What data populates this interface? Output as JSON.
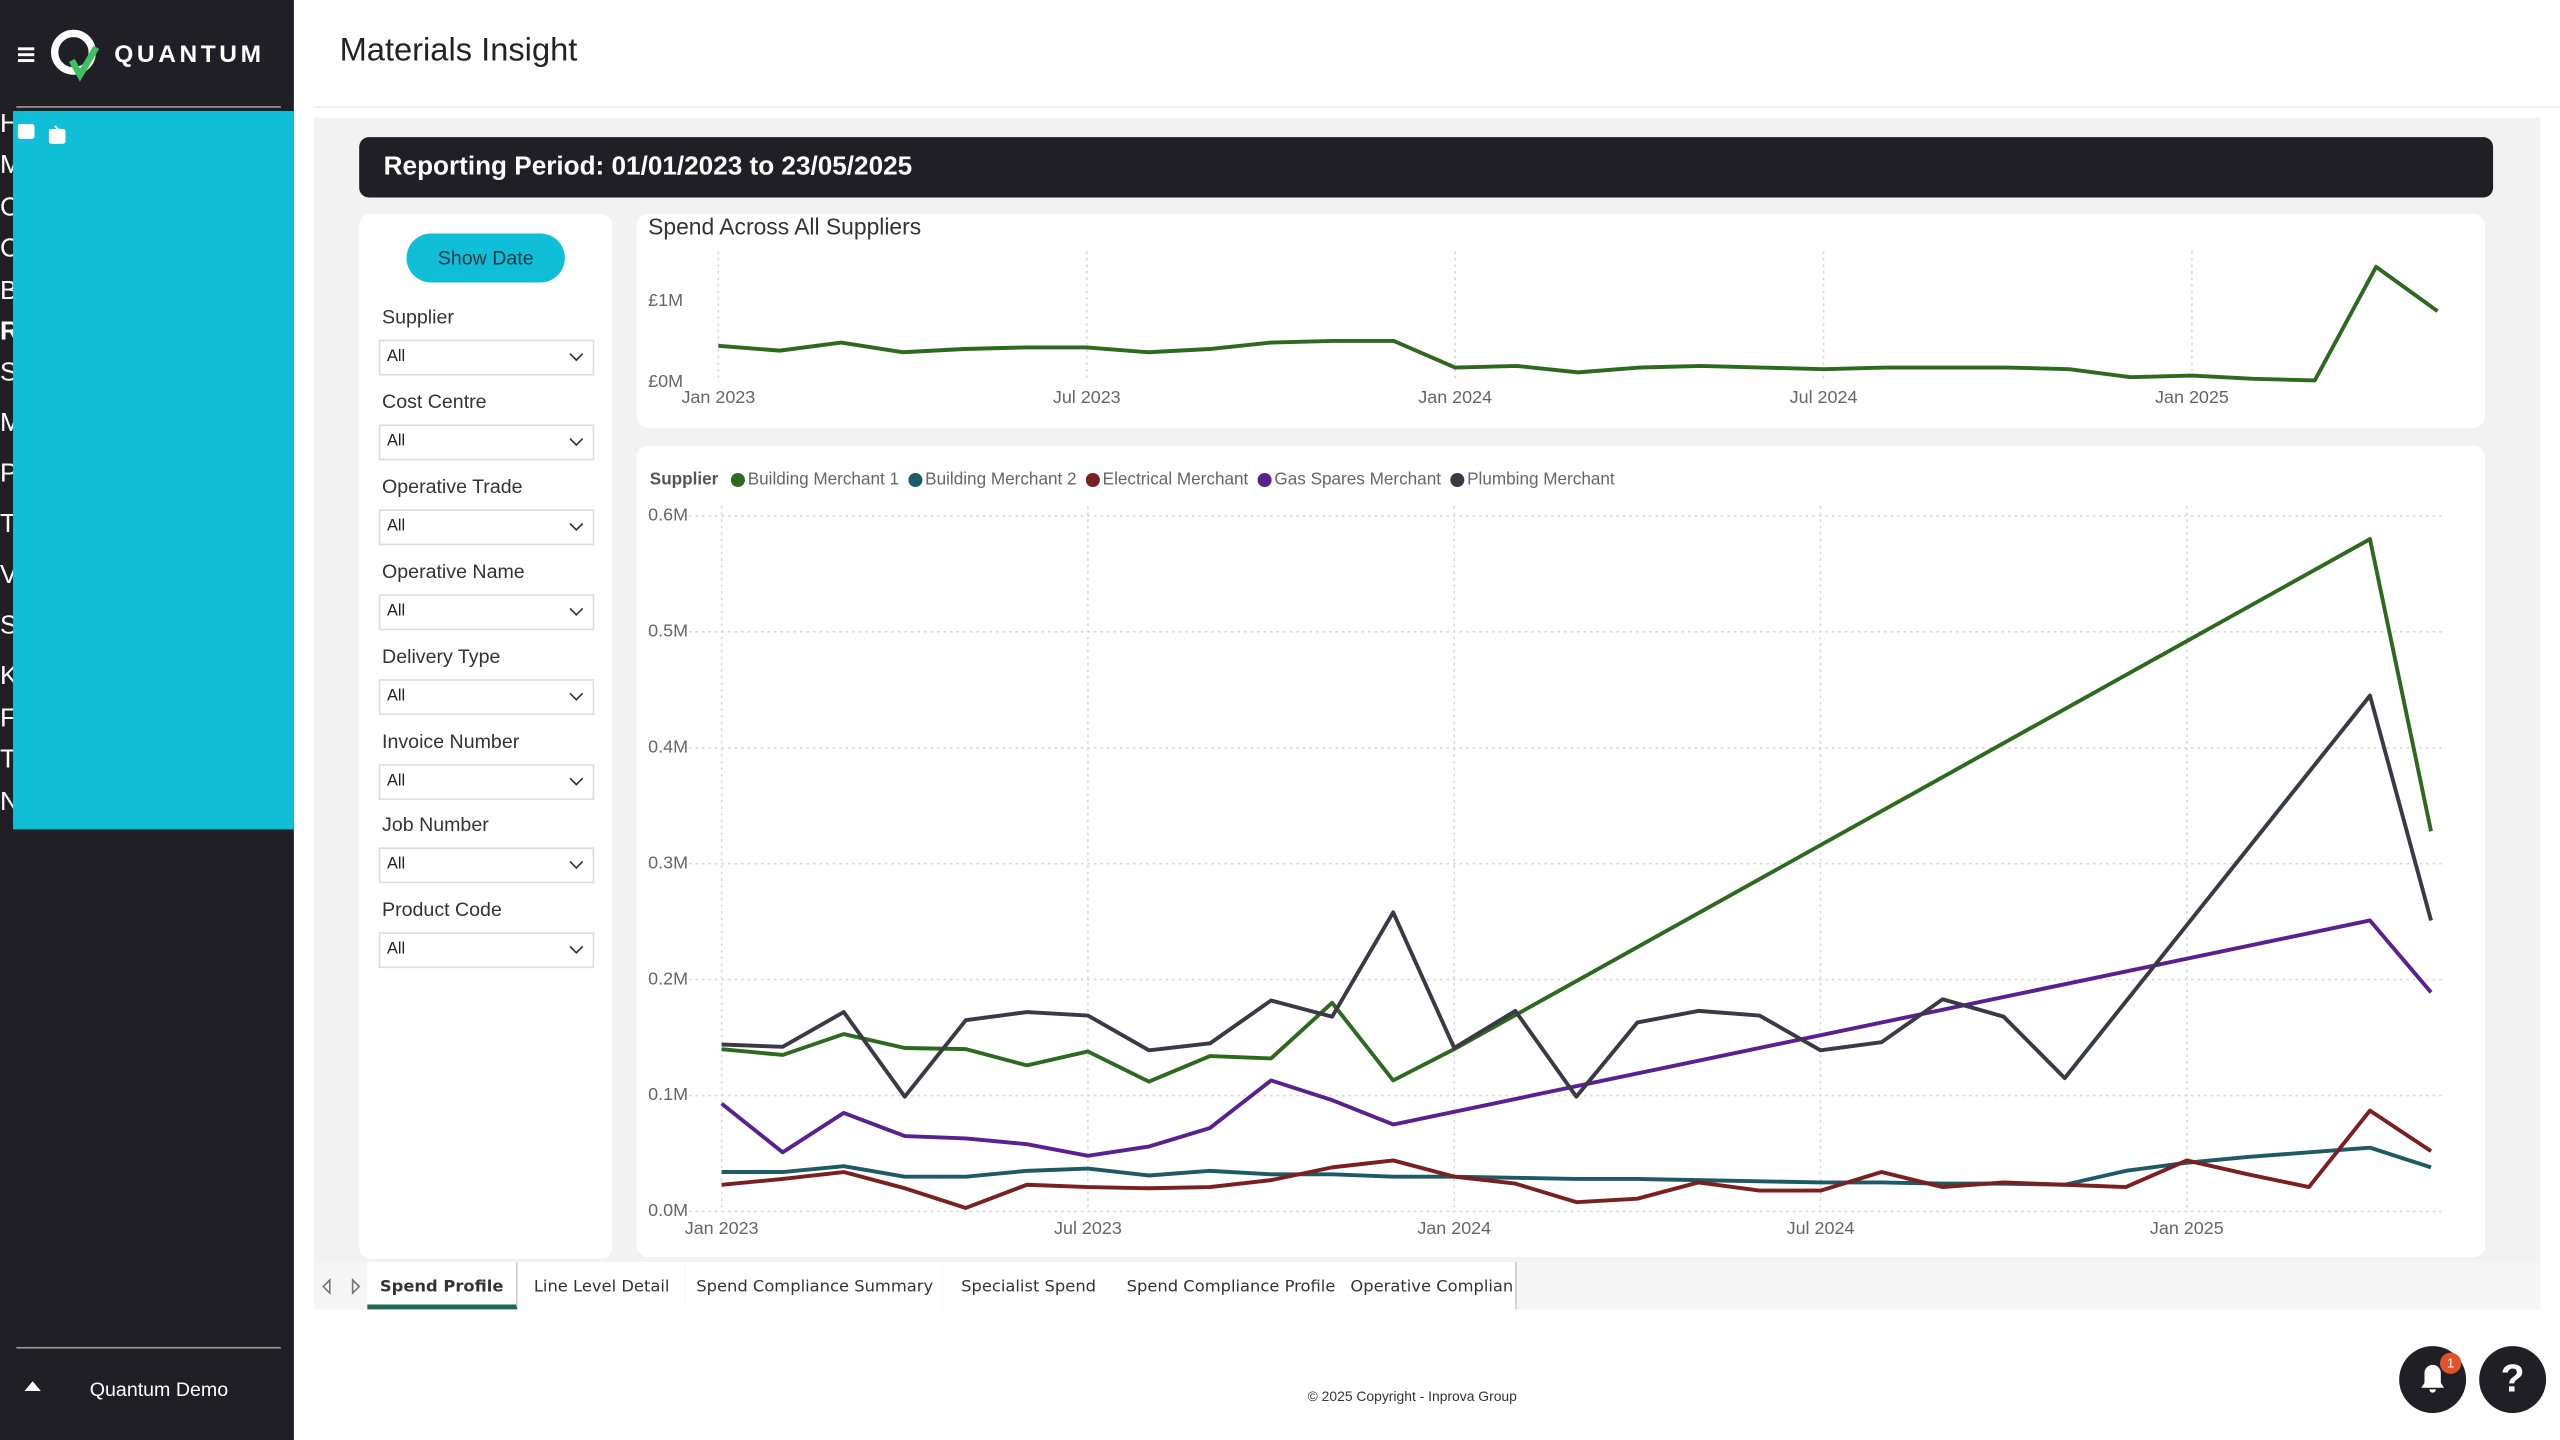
{
  "sidebar": {
    "brand": "QUANTUM",
    "nav": [
      {
        "label": "Home",
        "level": 0,
        "expandable": false
      },
      {
        "label": "Membership",
        "level": 0,
        "expandable": true
      },
      {
        "label": "Card Management",
        "level": 0,
        "expandable": true
      },
      {
        "label": "Contract Management",
        "level": 0,
        "expandable": true
      },
      {
        "label": "Basket",
        "level": 0,
        "expandable": true
      },
      {
        "label": "Reports & Data",
        "level": 0,
        "expandable": true,
        "open": true
      },
      {
        "label": "Spend Insight",
        "level": 1
      },
      {
        "label": "Materials Insight",
        "level": 1,
        "active": true
      },
      {
        "label": "Price Checking",
        "level": 1
      },
      {
        "label": "Transactions Download",
        "level": 1
      },
      {
        "label": "Value for Money",
        "level": 1
      },
      {
        "label": "Social Value",
        "level": 1
      },
      {
        "label": "Knowledge Hub",
        "level": 0,
        "expandable": true
      },
      {
        "label": "Finance & Billing",
        "level": 0,
        "expandable": true
      },
      {
        "label": "Tools & Resources",
        "level": 0,
        "expandable": true
      },
      {
        "label": "Notifications",
        "level": 0,
        "expandable": true
      }
    ],
    "user": "Quantum Demo"
  },
  "header": {
    "title": "Materials Insight"
  },
  "report": {
    "period": "Reporting Period: 01/01/2023 to 23/05/2025"
  },
  "filters": {
    "button": "Show Date",
    "items": [
      {
        "label": "Supplier",
        "value": "All"
      },
      {
        "label": "Cost Centre",
        "value": "All"
      },
      {
        "label": "Operative Trade",
        "value": "All"
      },
      {
        "label": "Operative Name",
        "value": "All"
      },
      {
        "label": "Delivery Type",
        "value": "All"
      },
      {
        "label": "Invoice Number",
        "value": "All"
      },
      {
        "label": "Job Number",
        "value": "All"
      },
      {
        "label": "Product Code",
        "value": "All"
      }
    ]
  },
  "chart_data": [
    {
      "type": "line",
      "title": "Spend Across All Suppliers",
      "color": "#2d6a1f",
      "grid": true,
      "x": [
        "2023-01",
        "2023-02",
        "2023-03",
        "2023-04",
        "2023-05",
        "2023-06",
        "2023-07",
        "2023-08",
        "2023-09",
        "2023-10",
        "2023-11",
        "2023-12",
        "2024-01",
        "2024-02",
        "2024-03",
        "2024-04",
        "2024-05",
        "2024-06",
        "2024-07",
        "2024-08",
        "2024-09",
        "2024-10",
        "2024-11",
        "2024-12",
        "2025-01",
        "2025-02",
        "2025-03",
        "2025-04",
        "2025-05"
      ],
      "values": [
        0.45,
        0.39,
        0.49,
        0.37,
        0.41,
        0.43,
        0.43,
        0.37,
        0.41,
        0.49,
        0.51,
        0.51,
        0.18,
        0.2,
        0.12,
        0.18,
        0.2,
        0.18,
        0.16,
        0.18,
        0.18,
        0.18,
        0.16,
        0.06,
        0.08,
        0.04,
        0.02,
        1.43,
        0.88
      ],
      "xlim": [
        "2023-01",
        "2025-05"
      ],
      "xticks": [
        {
          "value": "2023-01",
          "label": "Jan 2023"
        },
        {
          "value": "2023-07",
          "label": "Jul 2023"
        },
        {
          "value": "2024-01",
          "label": "Jan 2024"
        },
        {
          "value": "2024-07",
          "label": "Jul 2024"
        },
        {
          "value": "2025-01",
          "label": "Jan 2025"
        }
      ],
      "ylim": [
        0,
        1.5
      ],
      "yticks": [
        {
          "value": 0,
          "label": "£0M"
        },
        {
          "value": 1,
          "label": "£1M"
        }
      ]
    },
    {
      "type": "line",
      "legend_title": "Supplier",
      "grid": true,
      "series": [
        {
          "name": "Building Merchant 1",
          "color": "#2d6a1f",
          "x": [
            "2023-01",
            "2023-02",
            "2023-03",
            "2023-04",
            "2023-05",
            "2023-06",
            "2023-07",
            "2023-08",
            "2023-09",
            "2023-10",
            "2023-11",
            "2023-12",
            "2024-01",
            "2025-04",
            "2025-05"
          ],
          "values": [
            0.14,
            0.135,
            0.153,
            0.141,
            0.14,
            0.126,
            0.138,
            0.112,
            0.134,
            0.132,
            0.18,
            0.113,
            0.14,
            0.58,
            0.328
          ]
        },
        {
          "name": "Building Merchant 2",
          "color": "#1e5a66",
          "x": [
            "2023-01",
            "2023-02",
            "2023-03",
            "2023-04",
            "2023-05",
            "2023-06",
            "2023-07",
            "2023-08",
            "2023-09",
            "2023-10",
            "2023-11",
            "2023-12",
            "2024-01",
            "2024-02",
            "2024-03",
            "2024-04",
            "2024-05",
            "2024-06",
            "2024-07",
            "2024-08",
            "2024-09",
            "2024-10",
            "2024-11",
            "2024-12",
            "2025-01",
            "2025-02",
            "2025-03",
            "2025-04",
            "2025-05"
          ],
          "values": [
            0.034,
            0.034,
            0.039,
            0.03,
            0.03,
            0.035,
            0.037,
            0.031,
            0.035,
            0.032,
            0.032,
            0.03,
            0.03,
            0.029,
            0.028,
            0.028,
            0.027,
            0.026,
            0.025,
            0.025,
            0.024,
            0.024,
            0.023,
            0.035,
            0.042,
            0.047,
            0.051,
            0.055,
            0.038
          ]
        },
        {
          "name": "Electrical Merchant",
          "color": "#7b2020",
          "x": [
            "2023-01",
            "2023-02",
            "2023-03",
            "2023-04",
            "2023-05",
            "2023-06",
            "2023-07",
            "2023-08",
            "2023-09",
            "2023-10",
            "2023-11",
            "2023-12",
            "2024-01",
            "2024-02",
            "2024-03",
            "2024-04",
            "2024-05",
            "2024-06",
            "2024-07",
            "2024-08",
            "2024-09",
            "2024-10",
            "2024-11",
            "2024-12",
            "2025-01",
            "2025-02",
            "2025-03",
            "2025-04",
            "2025-05"
          ],
          "values": [
            0.023,
            0.028,
            0.034,
            0.02,
            0.003,
            0.023,
            0.021,
            0.02,
            0.021,
            0.027,
            0.038,
            0.044,
            0.03,
            0.024,
            0.008,
            0.011,
            0.025,
            0.018,
            0.018,
            0.034,
            0.021,
            0.025,
            0.023,
            0.021,
            0.044,
            0.032,
            0.021,
            0.087,
            0.052
          ]
        },
        {
          "name": "Gas Spares Merchant",
          "color": "#5a2090",
          "x": [
            "2023-01",
            "2023-02",
            "2023-03",
            "2023-04",
            "2023-05",
            "2023-06",
            "2023-07",
            "2023-08",
            "2023-09",
            "2023-10",
            "2023-11",
            "2023-12",
            "2025-04",
            "2025-05"
          ],
          "values": [
            0.093,
            0.051,
            0.085,
            0.065,
            0.063,
            0.058,
            0.048,
            0.056,
            0.072,
            0.113,
            0.096,
            0.075,
            0.251,
            0.189
          ]
        },
        {
          "name": "Plumbing Merchant",
          "color": "#3a3a44",
          "x": [
            "2023-01",
            "2023-02",
            "2023-03",
            "2023-04",
            "2023-05",
            "2023-06",
            "2023-07",
            "2023-08",
            "2023-09",
            "2023-10",
            "2023-11",
            "2023-12",
            "2024-01",
            "2024-02",
            "2024-03",
            "2024-04",
            "2024-05",
            "2024-06",
            "2024-07",
            "2024-08",
            "2024-09",
            "2024-10",
            "2024-11",
            "2025-04",
            "2025-05"
          ],
          "values": [
            0.144,
            0.142,
            0.172,
            0.099,
            0.165,
            0.172,
            0.169,
            0.139,
            0.145,
            0.182,
            0.168,
            0.258,
            0.141,
            0.173,
            0.099,
            0.163,
            0.173,
            0.169,
            0.139,
            0.146,
            0.183,
            0.168,
            0.115,
            0.445,
            0.251
          ]
        }
      ],
      "xlim": [
        "2023-01",
        "2025-05"
      ],
      "xticks": [
        {
          "value": "2023-01",
          "label": "Jan 2023"
        },
        {
          "value": "2023-07",
          "label": "Jul 2023"
        },
        {
          "value": "2024-01",
          "label": "Jan 2024"
        },
        {
          "value": "2024-07",
          "label": "Jul 2024"
        },
        {
          "value": "2025-01",
          "label": "Jan 2025"
        }
      ],
      "ylim": [
        0,
        0.6
      ],
      "yticks": [
        {
          "value": 0,
          "label": "0.0M"
        },
        {
          "value": 0.1,
          "label": "0.1M"
        },
        {
          "value": 0.2,
          "label": "0.2M"
        },
        {
          "value": 0.3,
          "label": "0.3M"
        },
        {
          "value": 0.4,
          "label": "0.4M"
        },
        {
          "value": 0.5,
          "label": "0.5M"
        },
        {
          "value": 0.6,
          "label": "0.6M"
        }
      ]
    }
  ],
  "tabs": [
    {
      "label": "Spend Profile",
      "active": true
    },
    {
      "label": "Line Level Detail"
    },
    {
      "label": "Spend Compliance Summary"
    },
    {
      "label": "Specialist Spend"
    },
    {
      "label": "Spend Compliance Profile"
    },
    {
      "label": "Operative Complian"
    }
  ],
  "footer": {
    "copyright": "© 2025 Copyright - Inprova Group"
  },
  "actions": {
    "alerts": 1,
    "help": "?"
  }
}
